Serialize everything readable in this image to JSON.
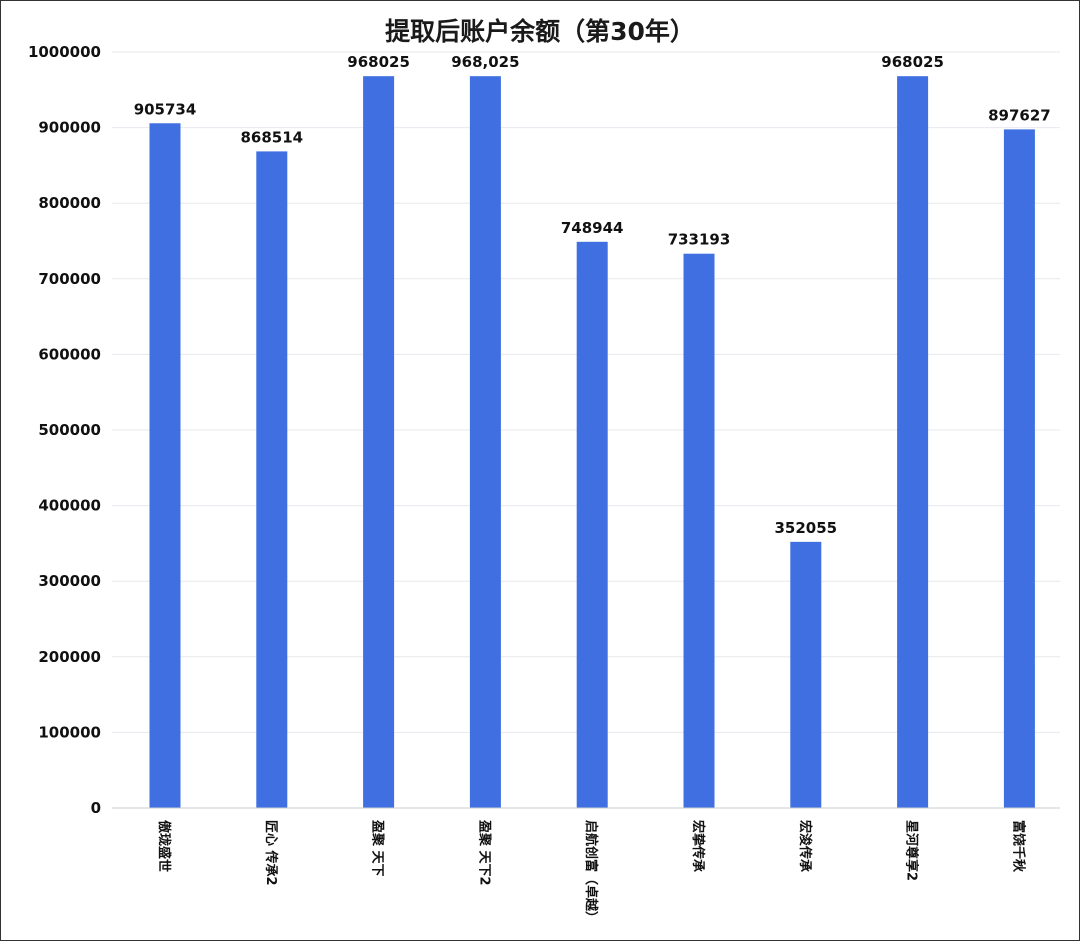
{
  "chart_data": {
    "type": "bar",
    "title": "提取后账户余额（第30年）",
    "xlabel": "",
    "ylabel": "",
    "ylim": [
      0,
      1000000
    ],
    "yticks": [
      "0",
      "100000",
      "200000",
      "300000",
      "400000",
      "500000",
      "600000",
      "700000",
      "800000",
      "900000",
      "1000000"
    ],
    "grid": true,
    "legend": "none",
    "bar_color": "#3f6fe0",
    "categories": [
      "傲珑盛世",
      "匠心 传承2",
      "盈聚 天下",
      "盈聚 天下2",
      "启航创富（卓越）",
      "宏挚传承",
      "宏浚传承",
      "星河尊享2",
      "富饶千秋"
    ],
    "values": [
      905734,
      868514,
      968025,
      968025,
      748944,
      733193,
      352055,
      968025,
      897627
    ],
    "value_labels": [
      "905734",
      "868514",
      "968025",
      "968,025",
      "748944",
      "733193",
      "352055",
      "968025",
      "897627"
    ]
  }
}
